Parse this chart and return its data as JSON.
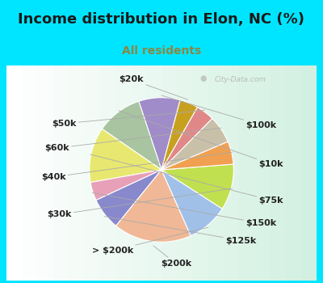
{
  "title": "Income distribution in Elon, NC (%)",
  "subtitle": "All residents",
  "title_color": "#1a1a1a",
  "subtitle_color": "#888844",
  "bg_top": "#00e5ff",
  "bg_chart_color": "#e8f8f0",
  "watermark": "City-Data.com",
  "labels": [
    "$100k",
    "$10k",
    "$75k",
    "$150k",
    "$125k",
    "$200k",
    "> $200k",
    "$30k",
    "$40k",
    "$60k",
    "$50k",
    "$20k"
  ],
  "sizes": [
    9,
    10,
    12,
    4,
    7,
    17,
    9,
    10,
    5,
    6,
    4,
    4
  ],
  "colors": [
    "#a08cc8",
    "#a8c4a0",
    "#e8e870",
    "#e8a0b8",
    "#8888cc",
    "#f0b896",
    "#a0c0e8",
    "#c0e050",
    "#f0a050",
    "#c8c0a8",
    "#e08888",
    "#c8a020"
  ],
  "label_color": "#222222",
  "label_fontsize": 8,
  "title_fontsize": 13,
  "subtitle_fontsize": 10,
  "startangle": 75
}
